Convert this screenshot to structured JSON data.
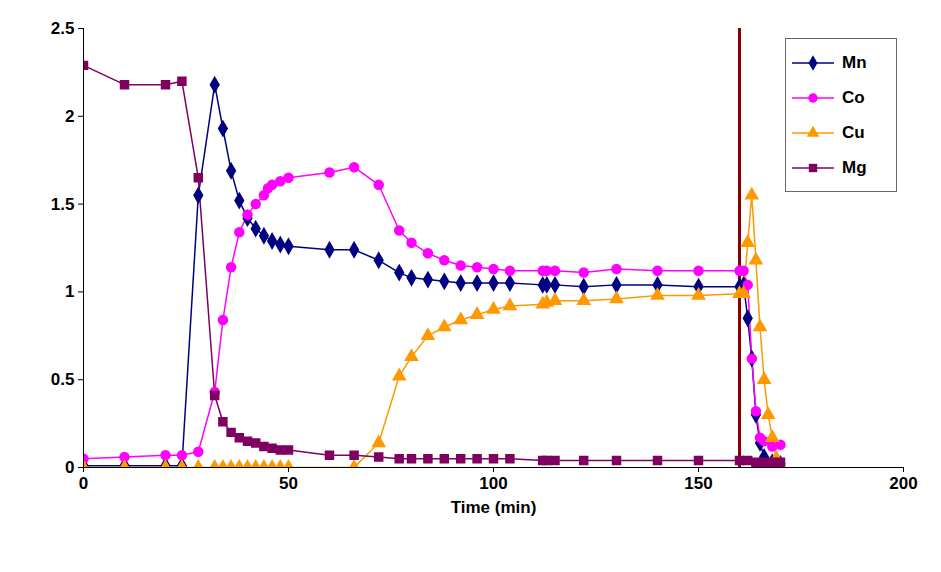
{
  "chart_data": {
    "type": "line",
    "x_label": "Time (min)",
    "xlim": [
      0,
      200
    ],
    "xticks": [
      0,
      50,
      100,
      150,
      200
    ],
    "ylim": [
      0,
      2.5
    ],
    "yticks": [
      0,
      0.5,
      1,
      1.5,
      2,
      2.5
    ],
    "legend": "top-right",
    "vline": {
      "x": 160,
      "color": "#8b0000"
    },
    "series": [
      {
        "name": "Mn",
        "color": "#000080",
        "marker": "diamond",
        "x": [
          0,
          10,
          20,
          24,
          28,
          32,
          34,
          36,
          38,
          40,
          42,
          44,
          46,
          48,
          50,
          60,
          66,
          72,
          77,
          80,
          84,
          88,
          92,
          96,
          100,
          104,
          112,
          113,
          115,
          122,
          130,
          140,
          150,
          160,
          161,
          162,
          163,
          164,
          165,
          166,
          168,
          170
        ],
        "values": [
          0.01,
          0.01,
          0.01,
          0.01,
          1.55,
          2.18,
          1.93,
          1.69,
          1.52,
          1.42,
          1.36,
          1.32,
          1.29,
          1.27,
          1.26,
          1.24,
          1.24,
          1.18,
          1.11,
          1.08,
          1.07,
          1.06,
          1.05,
          1.05,
          1.05,
          1.05,
          1.04,
          1.04,
          1.04,
          1.03,
          1.04,
          1.04,
          1.03,
          1.03,
          1.04,
          0.85,
          0.62,
          0.3,
          0.14,
          0.06,
          0.03,
          0.02
        ]
      },
      {
        "name": "Co",
        "color": "#ff00ff",
        "marker": "circle",
        "x": [
          0,
          10,
          20,
          24,
          28,
          32,
          34,
          36,
          38,
          40,
          42,
          44,
          45,
          46,
          48,
          50,
          60,
          66,
          72,
          77,
          80,
          84,
          88,
          92,
          96,
          100,
          104,
          112,
          113,
          115,
          122,
          130,
          140,
          150,
          160,
          161,
          162,
          163,
          164,
          165,
          166,
          168,
          170
        ],
        "values": [
          0.05,
          0.06,
          0.07,
          0.07,
          0.09,
          0.43,
          0.84,
          1.14,
          1.34,
          1.44,
          1.5,
          1.55,
          1.59,
          1.61,
          1.63,
          1.65,
          1.68,
          1.71,
          1.61,
          1.35,
          1.28,
          1.22,
          1.18,
          1.15,
          1.14,
          1.13,
          1.12,
          1.12,
          1.12,
          1.12,
          1.11,
          1.13,
          1.12,
          1.12,
          1.12,
          1.12,
          1.04,
          0.62,
          0.32,
          0.17,
          0.15,
          0.12,
          0.13
        ]
      },
      {
        "name": "Cu",
        "color": "#ff9900",
        "marker": "triangle",
        "x": [
          0,
          10,
          20,
          24,
          28,
          32,
          34,
          36,
          38,
          40,
          42,
          44,
          46,
          48,
          50,
          66,
          72,
          77,
          80,
          84,
          88,
          92,
          96,
          100,
          104,
          112,
          113,
          115,
          122,
          130,
          140,
          150,
          160,
          161,
          162,
          163,
          164,
          165,
          166,
          167,
          168,
          169
        ],
        "values": [
          0,
          0,
          0,
          0,
          0,
          0,
          0,
          0,
          0,
          0,
          0,
          0,
          0,
          0,
          0,
          0,
          0.14,
          0.52,
          0.63,
          0.75,
          0.8,
          0.84,
          0.87,
          0.9,
          0.92,
          0.93,
          0.94,
          0.95,
          0.95,
          0.96,
          0.98,
          0.98,
          0.99,
          0.99,
          1.28,
          1.55,
          1.18,
          0.8,
          0.5,
          0.3,
          0.17,
          0.05
        ]
      },
      {
        "name": "Mg",
        "color": "#800060",
        "marker": "square",
        "x": [
          0,
          10,
          20,
          24,
          28,
          32,
          34,
          36,
          38,
          40,
          42,
          44,
          46,
          48,
          50,
          60,
          66,
          72,
          77,
          80,
          84,
          88,
          92,
          96,
          100,
          104,
          112,
          113,
          115,
          122,
          130,
          140,
          150,
          160,
          162,
          164,
          166,
          168,
          170
        ],
        "values": [
          2.29,
          2.18,
          2.18,
          2.2,
          1.65,
          0.41,
          0.26,
          0.2,
          0.17,
          0.15,
          0.14,
          0.12,
          0.11,
          0.1,
          0.1,
          0.07,
          0.07,
          0.06,
          0.05,
          0.05,
          0.05,
          0.05,
          0.05,
          0.05,
          0.05,
          0.05,
          0.04,
          0.04,
          0.04,
          0.04,
          0.04,
          0.04,
          0.04,
          0.04,
          0.04,
          0.03,
          0.03,
          0.03,
          0.03
        ]
      }
    ]
  }
}
